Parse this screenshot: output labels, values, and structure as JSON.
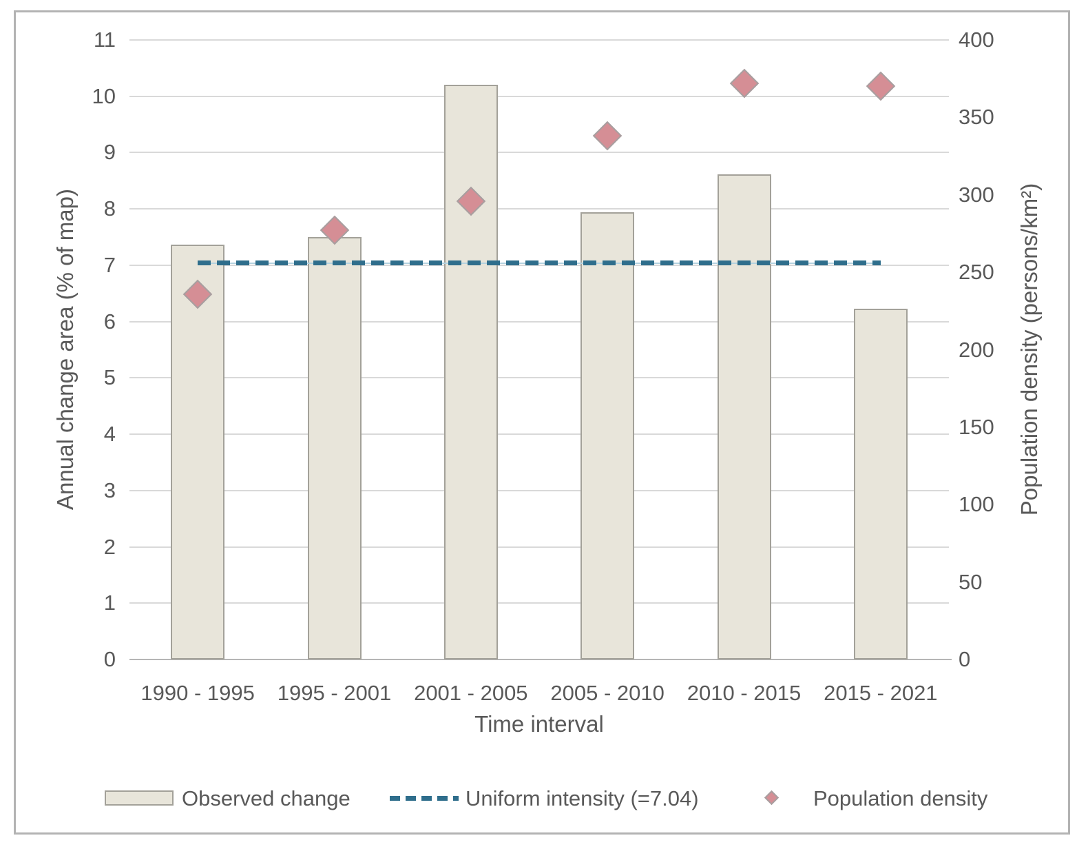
{
  "chart_data": {
    "type": "combo",
    "categories": [
      "1990 - 1995",
      "1995 - 2001",
      "2001 - 2005",
      "2005 - 2010",
      "2010 - 2015",
      "2015 - 2021"
    ],
    "series": [
      {
        "name": "Observed change",
        "type": "bar",
        "axis": "left",
        "values": [
          7.37,
          7.5,
          10.21,
          7.94,
          8.61,
          6.23
        ]
      },
      {
        "name": "Uniform intensity (=7.04)",
        "type": "dashed_line",
        "axis": "left",
        "value": 7.04
      },
      {
        "name": "Population density",
        "type": "scatter_diamond",
        "axis": "right",
        "values": [
          236,
          277,
          296,
          338,
          372,
          370
        ]
      }
    ],
    "x_axis": {
      "label": "Time interval"
    },
    "left_axis": {
      "label": "Annual change area (% of map)",
      "min": 0,
      "max": 11,
      "tick_step": 1,
      "ticks": [
        "0",
        "1",
        "2",
        "3",
        "4",
        "5",
        "6",
        "7",
        "8",
        "9",
        "10",
        "11"
      ]
    },
    "right_axis": {
      "label": "Population density (persons/km²)",
      "min": 0,
      "max": 400,
      "tick_step": 50,
      "ticks": [
        "0",
        "50",
        "100",
        "150",
        "200",
        "250",
        "300",
        "350",
        "400"
      ]
    },
    "legend": {
      "position": "bottom",
      "items": [
        "Observed change",
        "Uniform intensity (=7.04)",
        "Population density"
      ]
    },
    "grid": true
  },
  "colors": {
    "bar_fill": "#e8e5da",
    "bar_border": "#a3a199",
    "dash_line": "#2f6e8c",
    "dash_halo": "#b5d3e0",
    "diamond_fill": "#d58e95",
    "diamond_border": "#a79fa0",
    "grid": "#d9d9d9",
    "axis_line": "#b5b5b5",
    "text": "#595959",
    "figure_border": "#b3b3b3",
    "background": "#ffffff"
  }
}
